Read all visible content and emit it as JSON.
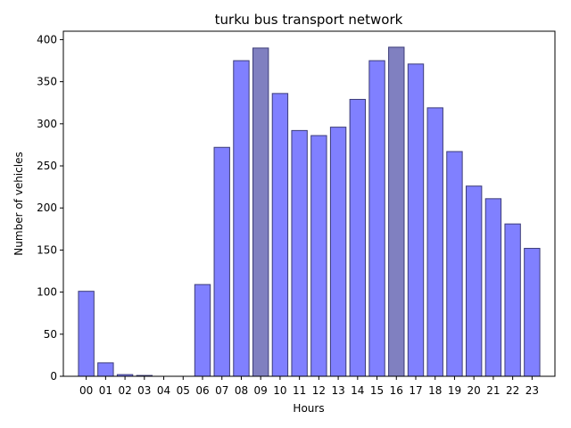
{
  "chart_data": {
    "type": "bar",
    "title": "turku bus transport network",
    "xlabel": "Hours",
    "ylabel": "Number of vehicles",
    "categories": [
      "00",
      "01",
      "02",
      "03",
      "04",
      "05",
      "06",
      "07",
      "08",
      "09",
      "10",
      "11",
      "12",
      "13",
      "14",
      "15",
      "16",
      "17",
      "18",
      "19",
      "20",
      "21",
      "22",
      "23"
    ],
    "values": [
      101,
      16,
      2,
      1,
      0,
      0,
      109,
      272,
      375,
      390,
      336,
      292,
      286,
      296,
      329,
      375,
      391,
      371,
      319,
      267,
      226,
      211,
      181,
      152
    ],
    "highlighted_categories": [
      "09",
      "16"
    ],
    "ylim": [
      0,
      410
    ],
    "yticks": [
      0,
      50,
      100,
      150,
      200,
      250,
      300,
      350,
      400
    ],
    "grid": false,
    "colors": {
      "bar": "#8080ff",
      "bar_highlight": "#8080c0",
      "bar_edge": "#3c3c78"
    }
  }
}
